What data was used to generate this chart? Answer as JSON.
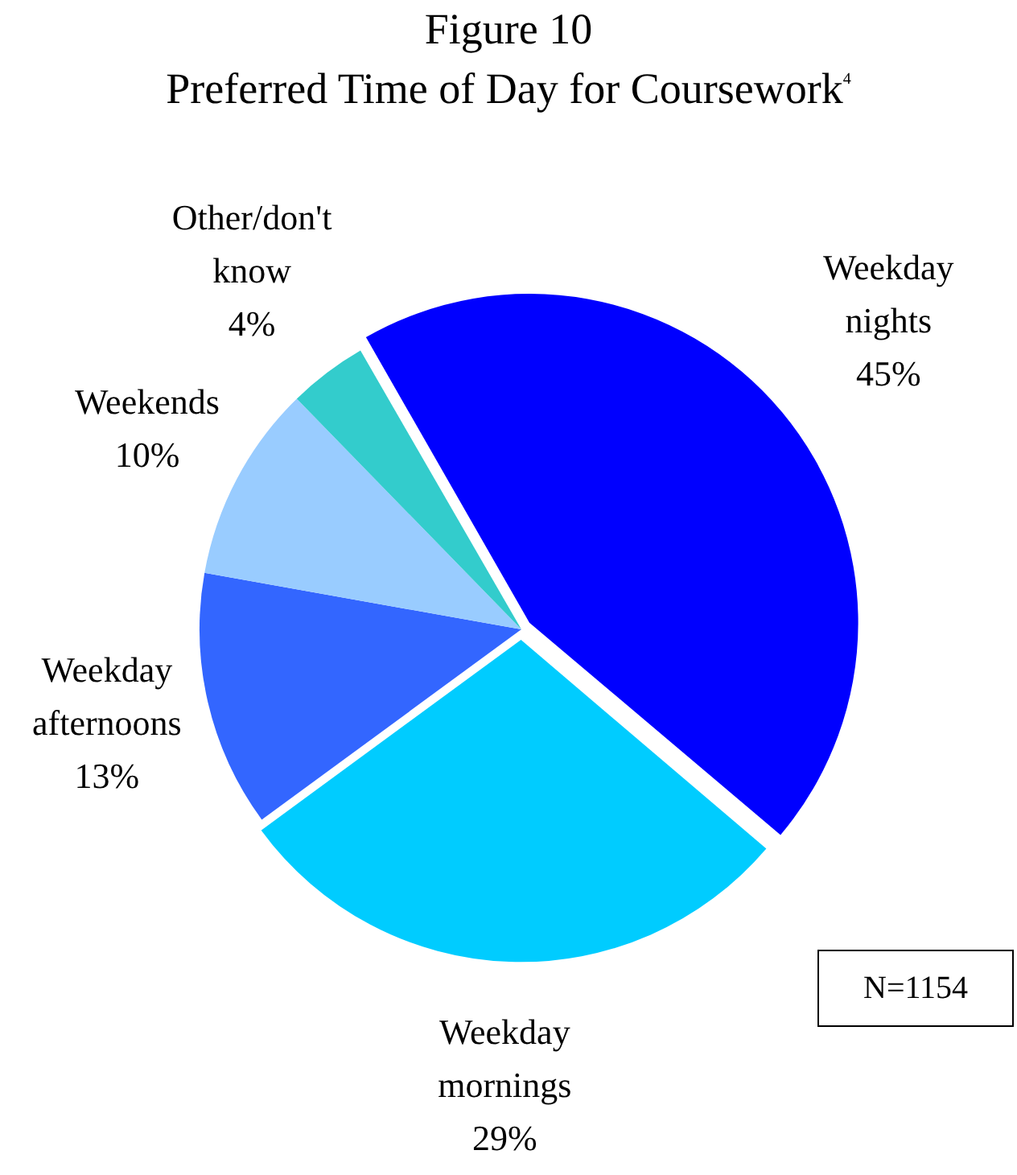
{
  "chart_data": {
    "type": "pie",
    "title": "Figure 10",
    "subtitle": "Preferred Time of Day for Coursework$^{4}$",
    "categories": [
      "Weekday nights",
      "Weekday mornings",
      "Weekday afternoons",
      "Weekends",
      "Other/don't know"
    ],
    "values": [
      45,
      29,
      13,
      10,
      4
    ],
    "value_labels": [
      "45%",
      "29%",
      "13%",
      "10%",
      "4%"
    ],
    "colors": [
      "#0000ff",
      "#00ccff",
      "#3366ff",
      "#99ccff",
      "#33cccc"
    ],
    "annotations": [
      "N=1154"
    ]
  }
}
